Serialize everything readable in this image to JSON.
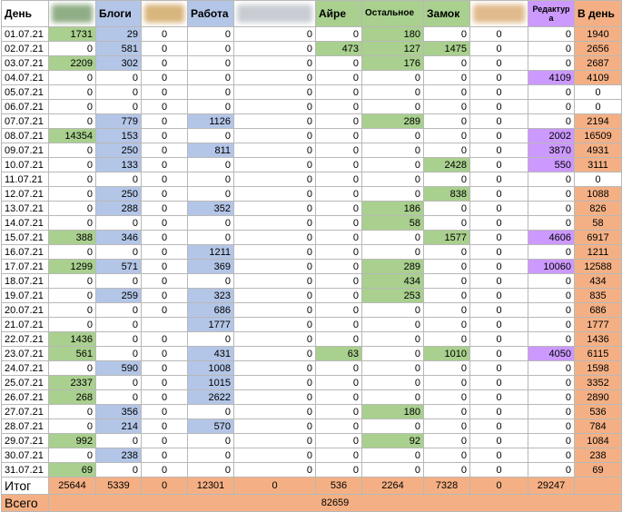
{
  "table": {
    "headers": [
      "День",
      null,
      "Блоги",
      null,
      "Работа",
      null,
      "Айре",
      "Остальное",
      "Замок",
      null,
      "Редактура",
      "В день"
    ],
    "column_colors": [
      null,
      "#a9d08e",
      "#b4c6e7",
      null,
      "#b4c6e7",
      null,
      "#a9d08e",
      "#a9d08e",
      "#a9d08e",
      null,
      "#cc99ff",
      "#f4b084"
    ],
    "rows": [
      [
        "01.07.21",
        1731,
        29,
        0,
        0,
        0,
        0,
        180,
        0,
        0,
        0,
        1940
      ],
      [
        "02.07.21",
        0,
        581,
        0,
        0,
        0,
        473,
        127,
        1475,
        0,
        0,
        2656
      ],
      [
        "03.07.21",
        2209,
        302,
        0,
        0,
        0,
        0,
        176,
        0,
        0,
        0,
        2687
      ],
      [
        "04.07.21",
        0,
        0,
        0,
        0,
        0,
        0,
        0,
        0,
        0,
        4109,
        4109
      ],
      [
        "05.07.21",
        0,
        0,
        0,
        0,
        0,
        0,
        0,
        0,
        0,
        0,
        0
      ],
      [
        "06.07.21",
        0,
        0,
        0,
        0,
        0,
        0,
        0,
        0,
        0,
        0,
        0
      ],
      [
        "07.07.21",
        0,
        779,
        0,
        1126,
        0,
        0,
        289,
        0,
        0,
        0,
        2194
      ],
      [
        "08.07.21",
        14354,
        153,
        0,
        0,
        0,
        0,
        0,
        0,
        0,
        2002,
        16509
      ],
      [
        "09.07.21",
        0,
        250,
        0,
        811,
        0,
        0,
        0,
        0,
        0,
        3870,
        4931
      ],
      [
        "10.07.21",
        0,
        133,
        0,
        0,
        0,
        0,
        0,
        2428,
        0,
        550,
        3111
      ],
      [
        "11.07.21",
        0,
        0,
        0,
        0,
        0,
        0,
        0,
        0,
        0,
        0,
        0
      ],
      [
        "12.07.21",
        0,
        250,
        0,
        0,
        0,
        0,
        0,
        838,
        0,
        0,
        1088
      ],
      [
        "13.07.21",
        0,
        288,
        0,
        352,
        0,
        0,
        186,
        0,
        0,
        0,
        826
      ],
      [
        "14.07.21",
        0,
        0,
        0,
        0,
        0,
        0,
        58,
        0,
        0,
        0,
        58
      ],
      [
        "15.07.21",
        388,
        346,
        0,
        0,
        0,
        0,
        0,
        1577,
        0,
        4606,
        6917
      ],
      [
        "16.07.21",
        0,
        0,
        0,
        1211,
        0,
        0,
        0,
        0,
        0,
        0,
        1211
      ],
      [
        "17.07.21",
        1299,
        571,
        0,
        369,
        0,
        0,
        289,
        0,
        0,
        10060,
        12588
      ],
      [
        "18.07.21",
        0,
        0,
        0,
        0,
        0,
        0,
        434,
        0,
        0,
        0,
        434
      ],
      [
        "19.07.21",
        0,
        259,
        0,
        323,
        0,
        0,
        253,
        0,
        0,
        0,
        835
      ],
      [
        "20.07.21",
        0,
        0,
        0,
        686,
        0,
        0,
        0,
        0,
        0,
        0,
        686
      ],
      [
        "21.07.21",
        0,
        0,
        null,
        1777,
        0,
        0,
        0,
        0,
        0,
        0,
        1777
      ],
      [
        "22.07.21",
        1436,
        0,
        0,
        0,
        0,
        0,
        0,
        0,
        0,
        0,
        1436
      ],
      [
        "23.07.21",
        561,
        0,
        0,
        431,
        0,
        63,
        0,
        1010,
        0,
        4050,
        6115
      ],
      [
        "24.07.21",
        0,
        590,
        0,
        1008,
        0,
        0,
        0,
        0,
        0,
        0,
        1598
      ],
      [
        "25.07.21",
        2337,
        0,
        0,
        1015,
        0,
        0,
        0,
        0,
        0,
        0,
        3352
      ],
      [
        "26.07.21",
        268,
        0,
        0,
        2622,
        0,
        0,
        0,
        0,
        0,
        0,
        2890
      ],
      [
        "27.07.21",
        0,
        356,
        0,
        0,
        0,
        0,
        180,
        0,
        0,
        0,
        536
      ],
      [
        "28.07.21",
        0,
        214,
        0,
        570,
        0,
        0,
        0,
        0,
        0,
        0,
        784
      ],
      [
        "29.07.21",
        992,
        0,
        0,
        0,
        0,
        0,
        92,
        0,
        0,
        0,
        1084
      ],
      [
        "30.07.21",
        0,
        238,
        0,
        0,
        0,
        0,
        0,
        0,
        0,
        0,
        238
      ],
      [
        "31.07.21",
        69,
        0,
        0,
        0,
        0,
        0,
        0,
        0,
        0,
        0,
        69
      ]
    ],
    "total": {
      "label": "Итог",
      "values": [
        25644,
        5339,
        0,
        12301,
        0,
        536,
        2264,
        7328,
        0,
        29247,
        null
      ]
    },
    "total_color": "#f4b084",
    "grand_total": {
      "label": "Всего",
      "value": 82659
    }
  }
}
